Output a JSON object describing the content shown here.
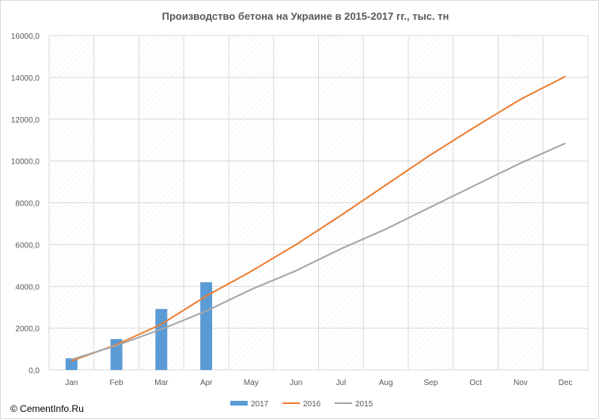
{
  "chart_data": {
    "type": "bar+line",
    "title": "Производство бетона на Украине  в 2015-2017  гг., тыс. тн",
    "categories": [
      "Jan",
      "Feb",
      "Mar",
      "Apr",
      "May",
      "Jun",
      "Jul",
      "Aug",
      "Sep",
      "Oct",
      "Nov",
      "Dec"
    ],
    "y_ticks": [
      "0,0",
      "2000,0",
      "4000,0",
      "6000,0",
      "8000,0",
      "10000,0",
      "12000,0",
      "14000,0",
      "16000,0"
    ],
    "ylim": [
      0,
      16000
    ],
    "grid": true,
    "legend_position": "bottom",
    "series": [
      {
        "name": "2017",
        "kind": "bar",
        "color": "#5b9bd5",
        "values": [
          560,
          1480,
          2920,
          4200,
          null,
          null,
          null,
          null,
          null,
          null,
          null,
          null
        ]
      },
      {
        "name": "2016",
        "kind": "line",
        "color": "#ed7d31",
        "values": [
          430,
          1210,
          2190,
          3540,
          4720,
          6000,
          7400,
          8850,
          10300,
          11650,
          12950,
          14050
        ]
      },
      {
        "name": "2015",
        "kind": "line",
        "color": "#a5a5a5",
        "values": [
          500,
          1170,
          1950,
          2820,
          3850,
          4750,
          5800,
          6740,
          7800,
          8850,
          9900,
          10850
        ]
      }
    ]
  },
  "credit": "© CementInfo.Ru"
}
